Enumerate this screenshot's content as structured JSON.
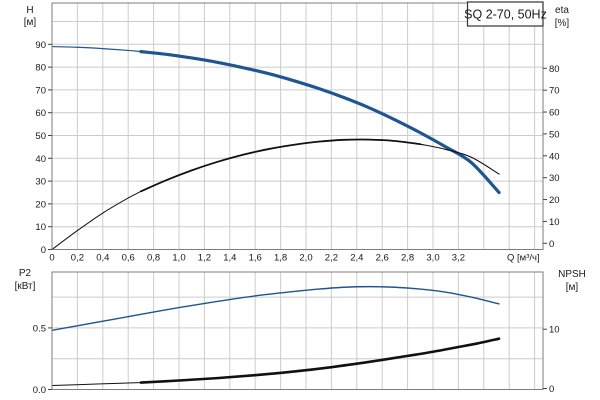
{
  "title_box": {
    "text": "SQ 2-70, 50Hz"
  },
  "axis_labels": {
    "h": {
      "name": "H",
      "unit": "[м]"
    },
    "eta": {
      "name": "eta",
      "unit": "[%]"
    },
    "q": {
      "name": "Q [м³/ч]"
    },
    "p2": {
      "name": "P2",
      "unit": "[кВт]"
    },
    "npsh": {
      "name": "NPSH",
      "unit": "[м]"
    }
  },
  "colors": {
    "curve_blue": "#1f5590",
    "curve_black": "#111111",
    "grid": "#cccccc",
    "frame": "#7d7d7d",
    "tick": "#444444"
  },
  "chart_data": [
    {
      "type": "line",
      "title": "SQ 2-70, 50Hz",
      "xlabel": "Q [м³/ч]",
      "x_range": [
        0,
        3.87
      ],
      "x_ticks": {
        "values": [
          0,
          0.2,
          0.4,
          0.6,
          0.8,
          1.0,
          1.2,
          1.4,
          1.6,
          1.8,
          2.0,
          2.2,
          2.4,
          2.6,
          2.8,
          3.0,
          3.2
        ],
        "labels": [
          "0",
          "0,2",
          "0,4",
          "0,6",
          "0,8",
          "1,0",
          "1,2",
          "1,4",
          "1,6",
          "1,8",
          "2,0",
          "2,2",
          "2,4",
          "2,6",
          "2,8",
          "3,0",
          "3,2"
        ]
      },
      "x_grid": {
        "step": 0.2,
        "max": 3.8
      },
      "left_axis": {
        "label": "H [м]",
        "scale": "H",
        "range": [
          0,
          108
        ],
        "tick_values": [
          0,
          10,
          20,
          30,
          40,
          50,
          60,
          70,
          80,
          90
        ],
        "tick_labels": [
          "0",
          "10",
          "20",
          "30",
          "40",
          "50",
          "60",
          "70",
          "80",
          "90"
        ],
        "grid_values": [
          10,
          20,
          30,
          40,
          50,
          60,
          70,
          80,
          90,
          100
        ]
      },
      "right_axis": {
        "label": "eta [%]",
        "scale": "eta",
        "tick_values": [
          0,
          10,
          20,
          30,
          40,
          50,
          60,
          70,
          80
        ],
        "tick_labels": [
          "0",
          "10",
          "20",
          "30",
          "40",
          "50",
          "60",
          "70",
          "80"
        ]
      },
      "series": [
        {
          "name": "H",
          "scale": "H",
          "color": "#1f5590",
          "points": [
            [
              0,
              89
            ],
            [
              0.2,
              88.7
            ],
            [
              0.4,
              88.1
            ],
            [
              0.6,
              87.3
            ],
            [
              0.7,
              86.8
            ],
            [
              0.9,
              85.6
            ],
            [
              1.1,
              84.0
            ],
            [
              1.3,
              82.1
            ],
            [
              1.5,
              79.8
            ],
            [
              1.7,
              77.2
            ],
            [
              1.9,
              74.1
            ],
            [
              2.1,
              70.6
            ],
            [
              2.3,
              66.6
            ],
            [
              2.5,
              62.1
            ],
            [
              2.7,
              56.9
            ],
            [
              2.9,
              51.2
            ],
            [
              3.1,
              45.0
            ],
            [
              3.3,
              38.2
            ],
            [
              3.52,
              25.0
            ]
          ],
          "widths": [
            {
              "until": 0.7,
              "w": 1.2
            },
            {
              "until": 3.6,
              "w": 3.2
            }
          ]
        },
        {
          "name": "eta",
          "scale": "eta_curve",
          "color": "#111111",
          "points": [
            [
              0,
              0
            ],
            [
              0.2,
              8.3
            ],
            [
              0.4,
              16.0
            ],
            [
              0.6,
              22.6
            ],
            [
              0.7,
              25.5
            ],
            [
              0.9,
              30.4
            ],
            [
              1.1,
              34.7
            ],
            [
              1.3,
              38.4
            ],
            [
              1.5,
              41.5
            ],
            [
              1.7,
              44.0
            ],
            [
              1.9,
              45.9
            ],
            [
              2.1,
              47.3
            ],
            [
              2.3,
              48.1
            ],
            [
              2.5,
              48.2
            ],
            [
              2.7,
              47.6
            ],
            [
              2.9,
              46.2
            ],
            [
              3.1,
              43.9
            ],
            [
              3.3,
              40.5
            ],
            [
              3.52,
              33.1
            ]
          ],
          "widths": [
            {
              "until": 0.7,
              "w": 1.0
            },
            {
              "until": 2.9,
              "w": 1.8
            },
            {
              "until": 3.6,
              "w": 1.1
            }
          ]
        }
      ]
    },
    {
      "type": "line",
      "title": "P2 / NPSH",
      "xlabel": null,
      "x_range": [
        0,
        3.87
      ],
      "x_ticks": null,
      "x_grid": {
        "step": 0.2,
        "max": 3.8
      },
      "left_axis": {
        "label": "P2 [кВт]",
        "scale": "P2",
        "range": [
          0,
          0.95
        ],
        "tick_values": [
          0,
          0.5
        ],
        "tick_labels": [
          "0.0",
          "0.5"
        ],
        "grid_values": [
          0.25,
          0.5,
          0.75
        ]
      },
      "right_axis": {
        "label": "NPSH [м]",
        "scale": "NPSH",
        "tick_values": [
          0,
          10
        ],
        "tick_labels": [
          "0",
          "10"
        ]
      },
      "series": [
        {
          "name": "P2",
          "scale": "P2",
          "color": "#1f5590",
          "points": [
            [
              0,
              0.48
            ],
            [
              0.35,
              0.545
            ],
            [
              0.7,
              0.61
            ],
            [
              1.0,
              0.665
            ],
            [
              1.3,
              0.715
            ],
            [
              1.6,
              0.76
            ],
            [
              1.9,
              0.795
            ],
            [
              2.1,
              0.815
            ],
            [
              2.3,
              0.83
            ],
            [
              2.5,
              0.835
            ],
            [
              2.7,
              0.83
            ],
            [
              2.9,
              0.815
            ],
            [
              3.1,
              0.79
            ],
            [
              3.3,
              0.75
            ],
            [
              3.52,
              0.695
            ]
          ],
          "widths": [
            {
              "until": 3.6,
              "w": 1.4
            }
          ]
        },
        {
          "name": "NPSH",
          "scale": "NPSH",
          "color": "#111111",
          "points": [
            [
              0,
              0.5
            ],
            [
              0.35,
              0.75
            ],
            [
              0.7,
              1.0
            ],
            [
              1.0,
              1.35
            ],
            [
              1.3,
              1.75
            ],
            [
              1.6,
              2.25
            ],
            [
              1.9,
              2.85
            ],
            [
              2.2,
              3.6
            ],
            [
              2.5,
              4.5
            ],
            [
              2.8,
              5.5
            ],
            [
              3.0,
              6.2
            ],
            [
              3.2,
              7.0
            ],
            [
              3.35,
              7.6
            ],
            [
              3.52,
              8.4
            ]
          ],
          "widths": [
            {
              "until": 0.7,
              "w": 1.0
            },
            {
              "until": 3.6,
              "w": 2.6
            }
          ]
        }
      ]
    }
  ]
}
